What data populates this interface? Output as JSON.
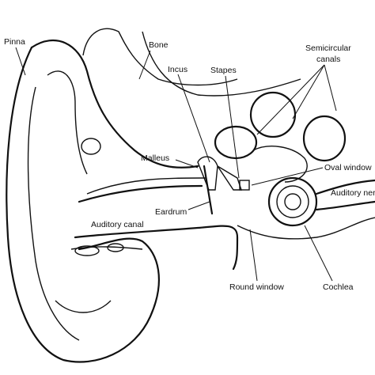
{
  "labels": {
    "pinna": "Pinna",
    "bone": "Bone",
    "incus": "Incus",
    "stapes": "Stapes",
    "semicircular_canals": [
      "Semicircular",
      "canals"
    ],
    "malleus": "Malleus",
    "oval_window": "Oval window",
    "auditory_nerve": "Auditory nerve",
    "eardrum": "Eardrum",
    "auditory_canal": "Auditory canal",
    "round_window": "Round window",
    "cochlea": "Cochlea"
  }
}
